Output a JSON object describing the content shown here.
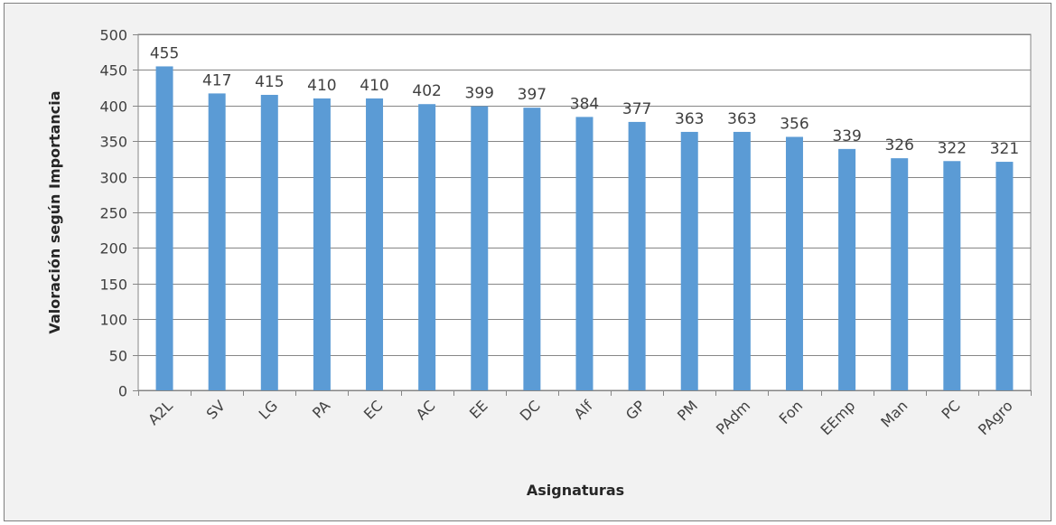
{
  "chart_data": {
    "type": "bar",
    "categories": [
      "A2L",
      "SV",
      "LG",
      "PA",
      "EC",
      "AC",
      "EE",
      "DC",
      "Alf",
      "GP",
      "PM",
      "PAdm",
      "Fon",
      "EEmp",
      "Man",
      "PC",
      "PAgro"
    ],
    "values": [
      455,
      417,
      415,
      410,
      410,
      402,
      399,
      397,
      384,
      377,
      363,
      363,
      356,
      339,
      326,
      322,
      321
    ],
    "xlabel": "Asignaturas",
    "ylabel": "Valoración según Importancia",
    "ylim": [
      0,
      500
    ],
    "ytick_step": 50,
    "grid": true,
    "legend": "none",
    "colors": {
      "bar": "#5b9bd5",
      "plot_background": "#ffffff",
      "chart_background": "#f2f2f2",
      "gridline": "#868686",
      "text": "#404040"
    }
  }
}
